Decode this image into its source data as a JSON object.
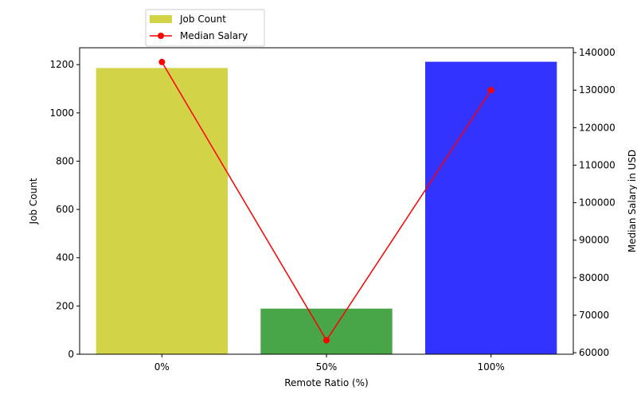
{
  "chart_data": {
    "type": "bar",
    "categories": [
      "0%",
      "50%",
      "100%"
    ],
    "xlabel": "Remote Ratio (%)",
    "ylabel_left": "Job Count",
    "ylabel_right": "Median Salary in USD",
    "bar_series": {
      "name": "Job Count",
      "values": [
        1186,
        189,
        1212
      ],
      "colors": [
        "#c8c81a",
        "#1a901a",
        "#0000ff"
      ]
    },
    "line_series": {
      "name": "Median Salary",
      "values": [
        137500,
        63312,
        130000
      ],
      "color": "#ff0000",
      "marker": "circle"
    },
    "left_axis": {
      "ylim": [
        0,
        1270
      ],
      "ticks": [
        0,
        200,
        400,
        600,
        800,
        1000,
        1200
      ]
    },
    "right_axis": {
      "ylim": [
        59600,
        141300
      ],
      "ticks": [
        60000,
        70000,
        80000,
        90000,
        100000,
        110000,
        120000,
        130000,
        140000
      ]
    },
    "legend_placement": "top-left, outside above axes",
    "grid": false
  }
}
